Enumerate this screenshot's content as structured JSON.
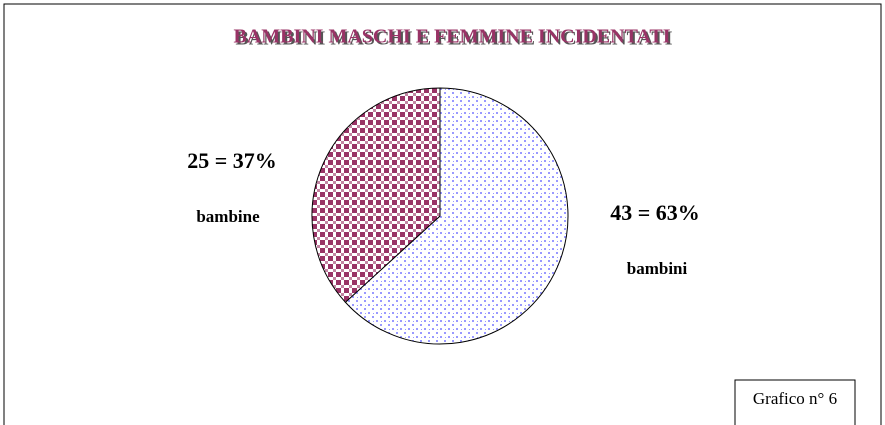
{
  "chart_data": {
    "type": "pie",
    "title": "BAMBINI MASCHI E FEMMINE INCIDENTATI",
    "categories": [
      "bambini",
      "bambine"
    ],
    "values": [
      43,
      25
    ],
    "value_labels": [
      "43 = 63%",
      "25 = 37%"
    ],
    "colors": [
      "#9999ff",
      "#993366"
    ],
    "annotation": "Grafico n° 6"
  }
}
